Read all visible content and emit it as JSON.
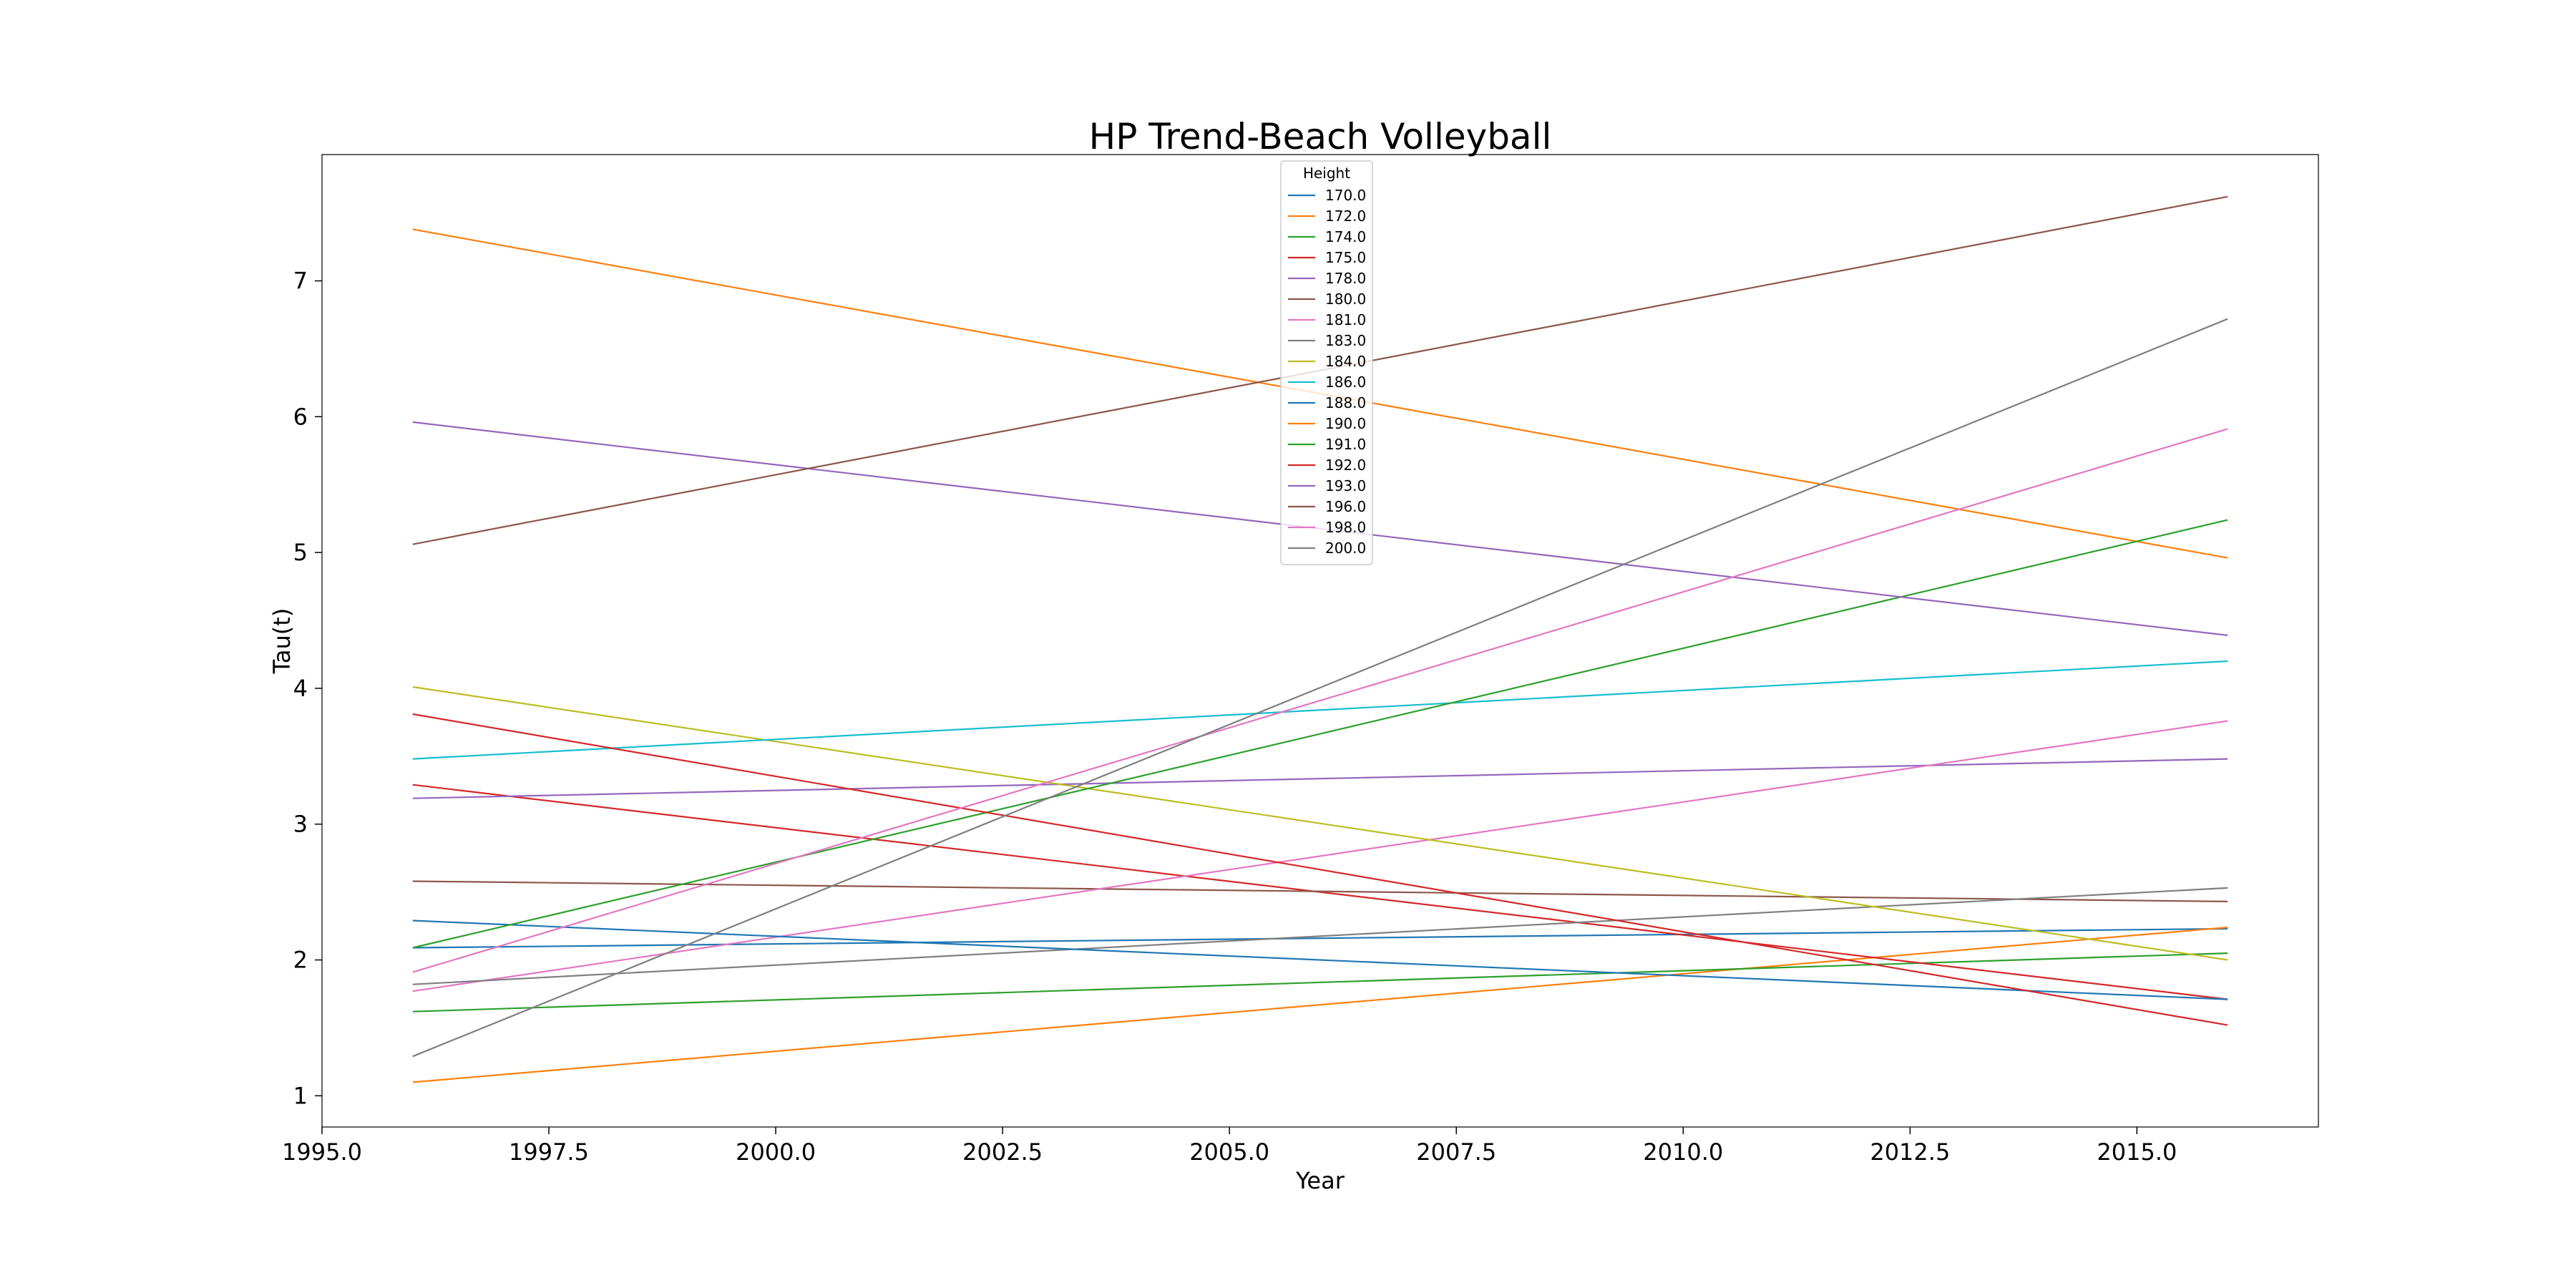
{
  "chart_data": {
    "type": "line",
    "title": "HP Trend-Beach Volleyball",
    "xlabel": "Year",
    "ylabel": "Tau(t)",
    "xlim": [
      1995.0,
      2017.0
    ],
    "ylim": [
      0.77,
      7.93
    ],
    "x_ticks": [
      "1995.0",
      "1997.5",
      "2000.0",
      "2002.5",
      "2005.0",
      "2007.5",
      "2010.0",
      "2012.5",
      "2015.0"
    ],
    "y_ticks": [
      "1",
      "2",
      "3",
      "4",
      "5",
      "6",
      "7"
    ],
    "grid": false,
    "legend": {
      "title": "Height",
      "placement": "upper center"
    },
    "x": [
      1996,
      2016
    ],
    "series": [
      {
        "name": "170.0",
        "color": "#1f77b4",
        "values": [
          2.09,
          2.23
        ]
      },
      {
        "name": "172.0",
        "color": "#ff7f0e",
        "values": [
          1.1,
          2.24
        ]
      },
      {
        "name": "174.0",
        "color": "#2ca02c",
        "values": [
          1.62,
          2.05
        ]
      },
      {
        "name": "175.0",
        "color": "#d62728",
        "values": [
          3.29,
          1.71
        ]
      },
      {
        "name": "178.0",
        "color": "#9467bd",
        "values": [
          3.19,
          3.48
        ]
      },
      {
        "name": "180.0",
        "color": "#8c564b",
        "values": [
          2.58,
          2.43
        ]
      },
      {
        "name": "181.0",
        "color": "#e377c2",
        "values": [
          1.77,
          3.76
        ]
      },
      {
        "name": "183.0",
        "color": "#7f7f7f",
        "values": [
          1.82,
          2.53
        ]
      },
      {
        "name": "184.0",
        "color": "#bcbd22",
        "values": [
          4.01,
          2.0
        ]
      },
      {
        "name": "186.0",
        "color": "#17becf",
        "values": [
          3.48,
          4.2
        ]
      },
      {
        "name": "188.0",
        "color": "#1f77b4",
        "values": [
          2.29,
          1.71
        ]
      },
      {
        "name": "190.0",
        "color": "#ff7f0e",
        "values": [
          7.38,
          4.96
        ]
      },
      {
        "name": "191.0",
        "color": "#2ca02c",
        "values": [
          2.09,
          5.24
        ]
      },
      {
        "name": "192.0",
        "color": "#d62728",
        "values": [
          3.81,
          1.52
        ]
      },
      {
        "name": "193.0",
        "color": "#9467bd",
        "values": [
          5.96,
          4.39
        ]
      },
      {
        "name": "196.0",
        "color": "#8c564b",
        "values": [
          5.06,
          7.62
        ]
      },
      {
        "name": "198.0",
        "color": "#e377c2",
        "values": [
          1.91,
          5.91
        ]
      },
      {
        "name": "200.0",
        "color": "#7f7f7f",
        "values": [
          1.29,
          6.72
        ]
      }
    ]
  }
}
